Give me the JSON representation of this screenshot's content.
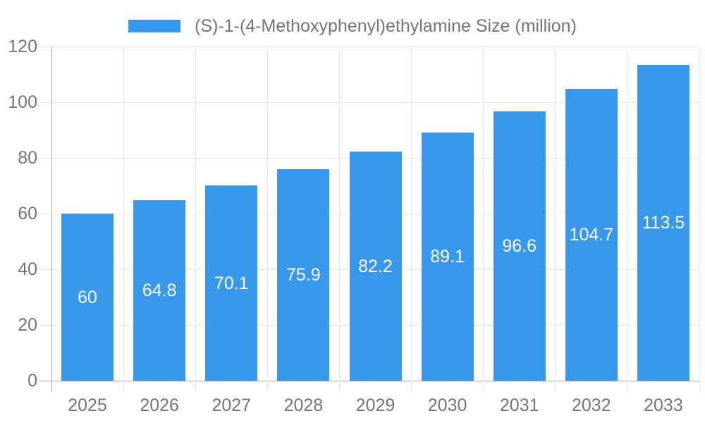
{
  "chart_data": {
    "type": "bar",
    "title": "(S)-1-(4-Methoxyphenyl)ethylamine Size (million)",
    "categories": [
      "2025",
      "2026",
      "2027",
      "2028",
      "2029",
      "2030",
      "2031",
      "2032",
      "2033"
    ],
    "values": [
      60,
      64.8,
      70.1,
      75.9,
      82.2,
      89.1,
      96.6,
      104.7,
      113.5
    ],
    "xlabel": "",
    "ylabel": "",
    "ylim": [
      0,
      120
    ],
    "y_ticks": [
      0,
      20,
      40,
      60,
      80,
      100,
      120
    ],
    "grid": "horizontal and vertical category boundaries",
    "legend_position": "top-center",
    "value_labels": "centered inside bars",
    "colors": {
      "bar": "#3899EC",
      "axis_text": "#757575",
      "axis_line": "#A8A8A8",
      "gridline": "#E6E6E6",
      "value_text": "#FFFFFF",
      "background": "#FFFFFF"
    }
  }
}
